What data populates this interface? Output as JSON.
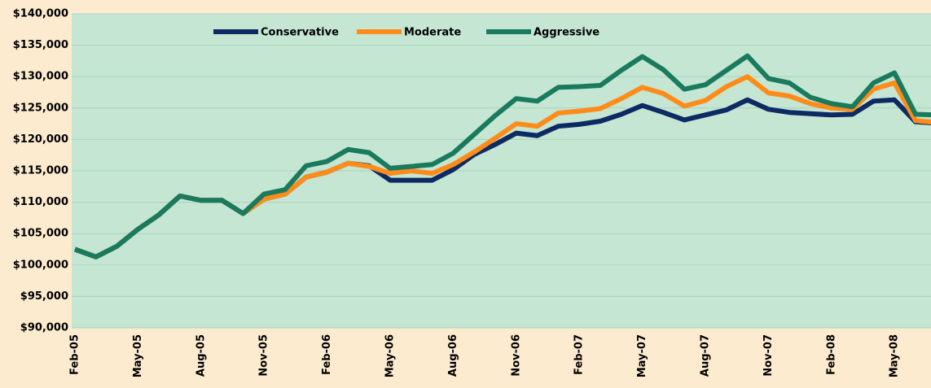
{
  "chart_data": {
    "type": "line",
    "categories": [
      "Feb-05",
      null,
      null,
      "May-05",
      null,
      null,
      "Aug-05",
      null,
      null,
      "Nov-05",
      null,
      null,
      "Feb-06",
      null,
      null,
      "May-06",
      null,
      null,
      "Aug-06",
      null,
      null,
      "Nov-06",
      null,
      null,
      "Feb-07",
      null,
      null,
      "May-07",
      null,
      null,
      "Aug-07",
      null,
      null,
      "Nov-07",
      null,
      null,
      "Feb-08",
      null,
      null,
      "May-08",
      null,
      null
    ],
    "series": [
      {
        "name": "Conservative",
        "color": "#0d2a63",
        "values": [
          102500,
          101300,
          103000,
          105700,
          108000,
          111000,
          110300,
          110300,
          108200,
          110500,
          111300,
          114000,
          114800,
          116200,
          115800,
          113500,
          113500,
          113500,
          115200,
          117600,
          119200,
          121000,
          120600,
          122100,
          122400,
          122900,
          124000,
          125400,
          124300,
          123100,
          123900,
          124700,
          126300,
          124800,
          124300,
          124100,
          123900,
          124000,
          126100,
          126300,
          122800,
          122600
        ]
      },
      {
        "name": "Moderate",
        "color": "#ff8c1a",
        "values": [
          102500,
          101300,
          103000,
          105700,
          108000,
          111000,
          110300,
          110300,
          108200,
          110500,
          111300,
          114000,
          114800,
          116200,
          115700,
          114600,
          115000,
          114600,
          116000,
          118000,
          120200,
          122500,
          122100,
          124200,
          124500,
          124900,
          126500,
          128300,
          127300,
          125300,
          126200,
          128400,
          130000,
          127400,
          126900,
          125700,
          125000,
          124800,
          128000,
          129000,
          123000,
          122700
        ]
      },
      {
        "name": "Aggressive",
        "color": "#1a7a5e",
        "values": [
          102500,
          101300,
          103000,
          105700,
          108000,
          111000,
          110300,
          110300,
          108200,
          111300,
          112000,
          115800,
          116500,
          118400,
          117900,
          115400,
          115700,
          116000,
          117800,
          120800,
          123800,
          126500,
          126100,
          128300,
          128400,
          128600,
          131000,
          133200,
          131100,
          128000,
          128700,
          131000,
          133300,
          129700,
          129000,
          126700,
          125700,
          125200,
          129000,
          130600,
          124000,
          123900
        ]
      }
    ],
    "ylim": [
      90000,
      140000
    ],
    "yticks": [
      {
        "value": 90000,
        "label": "$90,000"
      },
      {
        "value": 95000,
        "label": "$95,000"
      },
      {
        "value": 100000,
        "label": "$100,000"
      },
      {
        "value": 105000,
        "label": "$105,000"
      },
      {
        "value": 110000,
        "label": "$110,000"
      },
      {
        "value": 115000,
        "label": "$115,000"
      },
      {
        "value": 120000,
        "label": "$120,000"
      },
      {
        "value": 125000,
        "label": "$125,000"
      },
      {
        "value": 130000,
        "label": "$130,000"
      },
      {
        "value": 135000,
        "label": "$135,000"
      },
      {
        "value": 140000,
        "label": "$140,000"
      }
    ],
    "grid": true,
    "legend": "top"
  }
}
